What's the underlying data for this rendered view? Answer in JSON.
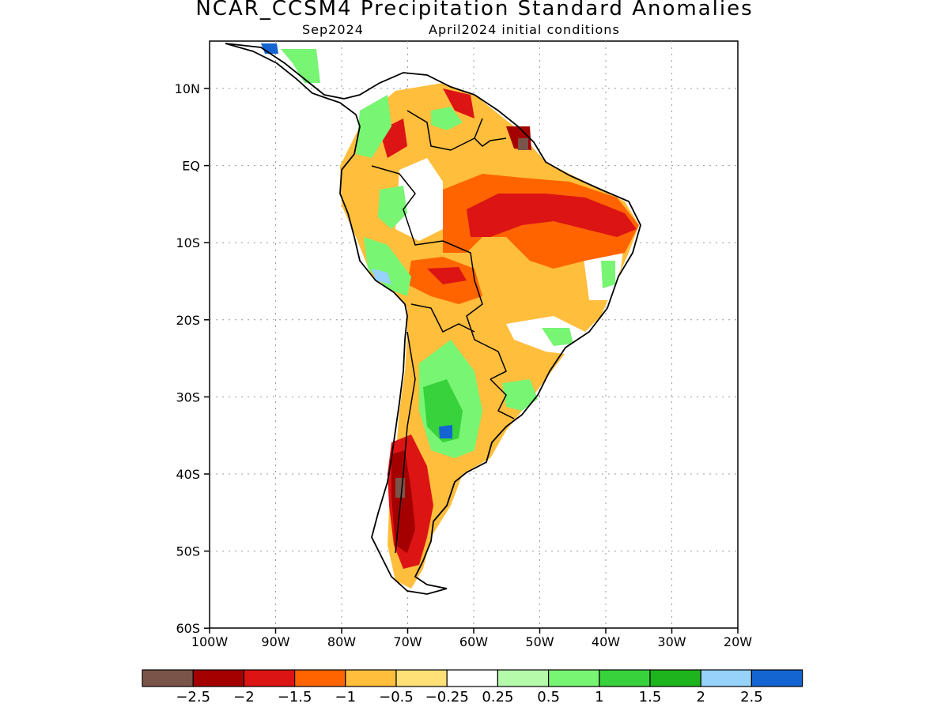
{
  "title": "NCAR_CCSM4 Precipitation Standard Anomalies",
  "subtitle_left": "Sep2024",
  "subtitle_right": "April2024 initial conditions",
  "lat_labels": [
    "10N",
    "EQ",
    "10S",
    "20S",
    "30S",
    "40S",
    "50S",
    "60S"
  ],
  "lon_labels": [
    "100W",
    "90W",
    "80W",
    "70W",
    "60W",
    "50W",
    "40W",
    "30W",
    "20W"
  ],
  "colorbar": {
    "colors": [
      "#7a5448",
      "#a50000",
      "#dc1414",
      "#ff6400",
      "#ffbe3c",
      "#ffe178",
      "#ffffff",
      "#b4faaa",
      "#78f573",
      "#37d23c",
      "#1eb41e",
      "#96d2fa",
      "#1464d2"
    ],
    "labels": [
      "-2.5",
      "-2",
      "-1.5",
      "-1",
      "-0.5",
      "-0.25",
      "0.25",
      "0.5",
      "1",
      "1.5",
      "2",
      "2.5"
    ]
  }
}
